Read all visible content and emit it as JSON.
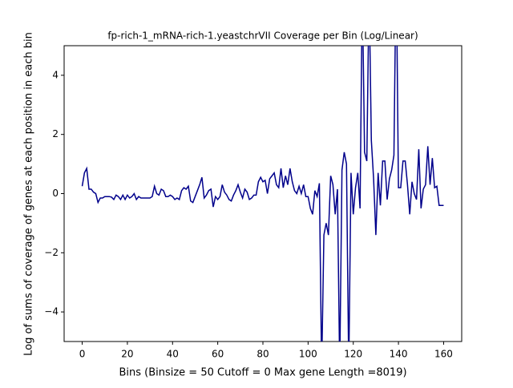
{
  "chart_data": {
    "type": "line",
    "title": "fp-rich-1_mRNA-rich-1.yeastchrVII Coverage per Bin (Log/Linear)",
    "x_label": "Bins  (Binsize = 50 Cutoff = 0 Max gene Length =8019)",
    "y_label": "Log of sums of coverage of genes at each position in each bin",
    "color": "#00008b",
    "x": [
      0,
      1,
      2,
      3,
      4,
      5,
      6,
      7,
      8,
      9,
      10,
      11,
      12,
      13,
      14,
      15,
      16,
      17,
      18,
      19,
      20,
      21,
      22,
      23,
      24,
      25,
      26,
      27,
      28,
      29,
      30,
      31,
      32,
      33,
      34,
      35,
      36,
      37,
      38,
      39,
      40,
      41,
      42,
      43,
      44,
      45,
      46,
      47,
      48,
      49,
      50,
      51,
      52,
      53,
      54,
      55,
      56,
      57,
      58,
      59,
      60,
      61,
      62,
      63,
      64,
      65,
      66,
      67,
      68,
      69,
      70,
      71,
      72,
      73,
      74,
      75,
      76,
      77,
      78,
      79,
      80,
      81,
      82,
      83,
      84,
      85,
      86,
      87,
      88,
      89,
      90,
      91,
      92,
      93,
      94,
      95,
      96,
      97,
      98,
      99,
      100,
      101,
      102,
      103,
      104,
      105,
      106,
      107,
      108,
      109,
      110,
      111,
      112,
      113,
      114,
      115,
      116,
      117,
      118,
      119,
      120,
      121,
      122,
      123,
      124,
      125,
      126,
      127,
      128,
      129,
      130,
      131,
      132,
      133,
      134,
      135,
      136,
      137,
      138,
      139,
      140,
      141,
      142,
      143,
      144,
      145,
      146,
      147,
      148,
      149,
      150,
      151,
      152,
      153,
      154,
      155,
      156,
      157,
      158,
      159,
      160
    ],
    "values": [
      0.25,
      0.7,
      0.85,
      0.15,
      0.15,
      0.05,
      0.0,
      -0.3,
      -0.15,
      -0.15,
      -0.1,
      -0.1,
      -0.1,
      -0.12,
      -0.2,
      -0.05,
      -0.1,
      -0.2,
      -0.05,
      -0.2,
      -0.05,
      -0.15,
      -0.1,
      0.0,
      -0.2,
      -0.1,
      -0.15,
      -0.15,
      -0.15,
      -0.15,
      -0.15,
      -0.1,
      0.25,
      0.0,
      -0.05,
      0.15,
      0.1,
      -0.1,
      -0.1,
      -0.05,
      -0.1,
      -0.2,
      -0.15,
      -0.2,
      0.1,
      0.2,
      0.15,
      0.25,
      -0.25,
      -0.3,
      -0.1,
      0.1,
      0.3,
      0.55,
      -0.15,
      -0.05,
      0.1,
      0.15,
      -0.45,
      -0.1,
      -0.2,
      -0.1,
      0.3,
      0.05,
      -0.05,
      -0.2,
      -0.25,
      -0.05,
      0.1,
      0.3,
      0.05,
      -0.15,
      0.15,
      0.05,
      -0.2,
      -0.15,
      -0.05,
      -0.05,
      0.4,
      0.55,
      0.4,
      0.45,
      0.0,
      0.5,
      0.6,
      0.7,
      0.3,
      0.2,
      0.85,
      0.2,
      0.6,
      0.3,
      0.85,
      0.4,
      0.1,
      0.0,
      0.25,
      0.0,
      0.3,
      -0.1,
      -0.1,
      -0.5,
      -0.7,
      0.1,
      -0.1,
      0.35,
      -6,
      -1.4,
      -1.0,
      -1.4,
      0.6,
      0.3,
      -0.7,
      0.15,
      -6,
      0.8,
      1.4,
      1.0,
      -6,
      0.7,
      -0.7,
      0.2,
      0.7,
      -0.5,
      7,
      1.4,
      1.1,
      7,
      1.8,
      0.5,
      -1.4,
      0.7,
      -0.4,
      1.1,
      1.1,
      -0.2,
      0.5,
      0.8,
      1.3,
      8,
      0.2,
      0.2,
      1.1,
      1.1,
      0.3,
      -0.7,
      0.4,
      0.0,
      -0.2,
      1.5,
      -0.5,
      0.15,
      0.3,
      1.6,
      0.3,
      1.2,
      0.2,
      0.25,
      -0.4,
      -0.4,
      -0.4
    ],
    "xlim": [
      -8,
      168
    ],
    "ylim": [
      -5,
      5
    ],
    "xticks": [
      0,
      20,
      40,
      60,
      80,
      100,
      120,
      140,
      160
    ],
    "yticks": [
      {
        "value": -4,
        "label": "−4"
      },
      {
        "value": -2,
        "label": "−2"
      },
      0,
      2,
      4
    ]
  }
}
